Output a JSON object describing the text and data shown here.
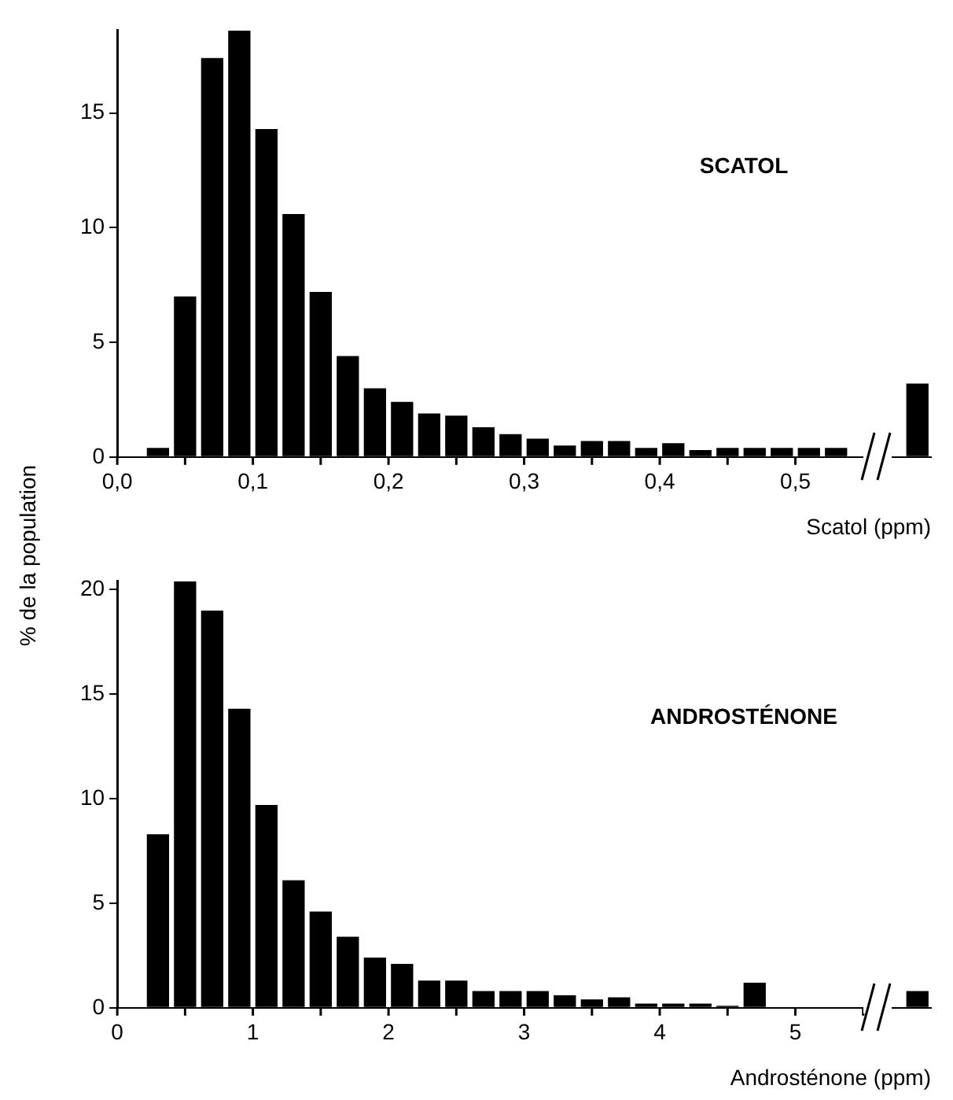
{
  "chart_data": [
    {
      "type": "histogram",
      "title": "SCATOL",
      "xlabel": "Scatol (ppm)",
      "ylabel": "% de la population",
      "color": "#000000",
      "bins": [
        0.02,
        0.04,
        0.06,
        0.08,
        0.1,
        0.12,
        0.14,
        0.16,
        0.18,
        0.2,
        0.22,
        0.24,
        0.26,
        0.28,
        0.3,
        0.32,
        0.34,
        0.36,
        0.38,
        0.4,
        0.42,
        0.44,
        0.46,
        0.48,
        0.5,
        0.52,
        0.54,
        0.56,
        0.58,
        0.6
      ],
      "values": [
        0.4,
        7.0,
        17.4,
        18.6,
        14.3,
        10.6,
        7.2,
        4.4,
        3.0,
        2.4,
        1.9,
        1.8,
        1.3,
        1.0,
        0.8,
        0.5,
        0.7,
        0.7,
        0.4,
        0.6,
        0.3,
        0.4,
        0.4,
        0.4,
        0.4,
        0.4,
        0,
        0,
        3.2
      ],
      "xlim": [
        0,
        0.6
      ],
      "ylim": [
        0,
        18.6
      ],
      "xticks": [
        {
          "value": 0,
          "label": "0,0"
        },
        {
          "value": 0.05,
          "label": null
        },
        {
          "value": 0.1,
          "label": "0,1"
        },
        {
          "value": 0.15,
          "label": null
        },
        {
          "value": 0.2,
          "label": "0,2"
        },
        {
          "value": 0.25,
          "label": null
        },
        {
          "value": 0.3,
          "label": "0,3"
        },
        {
          "value": 0.35,
          "label": null
        },
        {
          "value": 0.4,
          "label": "0,4"
        },
        {
          "value": 0.45,
          "label": null
        },
        {
          "value": 0.5,
          "label": "0,5"
        }
      ],
      "yticks": [
        0,
        5,
        10,
        15
      ],
      "grid": false,
      "legend": false
    },
    {
      "type": "histogram",
      "title": "ANDROSTÉNONE",
      "xlabel": "Androsténone (ppm)",
      "color": "#000000",
      "bins": [
        0.2,
        0.4,
        0.6,
        0.8,
        1.0,
        1.2,
        1.4,
        1.6,
        1.8,
        2.0,
        2.2,
        2.4,
        2.6,
        2.8,
        3.0,
        3.2,
        3.4,
        3.6,
        3.8,
        4.0,
        4.2,
        4.4,
        4.6,
        4.8,
        5.0,
        5.2,
        5.4,
        5.6,
        5.8,
        6.0
      ],
      "values": [
        8.3,
        20.4,
        19.0,
        14.3,
        9.7,
        6.1,
        4.6,
        3.4,
        2.4,
        2.1,
        1.3,
        1.3,
        0.8,
        0.8,
        0.8,
        0.6,
        0.4,
        0.5,
        0.2,
        0.2,
        0.2,
        0.1,
        1.2,
        0,
        0,
        0,
        0,
        0,
        0.8
      ],
      "xlim": [
        0,
        6.0
      ],
      "ylim": [
        0,
        20.4
      ],
      "xticks": [
        0,
        {
          "value": 0.5,
          "label": null
        },
        1,
        {
          "value": 1.5,
          "label": null
        },
        2,
        {
          "value": 2.5,
          "label": null
        },
        3,
        {
          "value": 3.5,
          "label": null
        },
        4,
        {
          "value": 4.5,
          "label": null
        },
        5,
        {
          "value": 5.5,
          "label": null
        }
      ],
      "yticks": [
        0,
        5,
        10,
        15,
        20
      ],
      "grid": false,
      "legend": false
    }
  ]
}
